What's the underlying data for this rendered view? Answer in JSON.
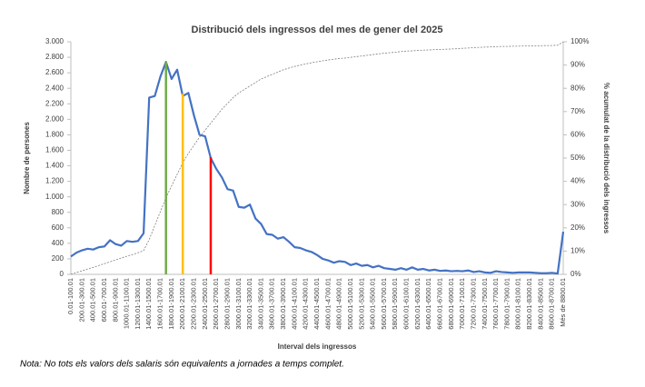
{
  "chart_data": {
    "type": "line",
    "title": "Distribució dels ingressos del mes de gener del 2025",
    "xlabel": "Interval dels ingressos",
    "ylabel": "Nombre de persones",
    "y2label": "% acumulat de la distribució dels ingressos",
    "note": "Nota: No tots els valors dels salaris són equivalents a jornades a temps complet.",
    "categories": [
      "0.01-100.01",
      null,
      "200.01-300.01",
      null,
      "400.01-500.01",
      null,
      "600.01-700.01",
      null,
      "800.01-900.01",
      null,
      "1000.01-1100.01",
      null,
      "1200.01-1300.01",
      null,
      "1400.01-1500.01",
      null,
      "1600.01-1700.01",
      null,
      "1800.01-1900.01",
      null,
      "2000.01-2100.01",
      null,
      "2200.01-2300.01",
      null,
      "2400.01-2500.01",
      null,
      "2600.01-2700.01",
      null,
      "2800.01-2900.01",
      null,
      "3000.01-3100.01",
      null,
      "3200.01-3300.01",
      null,
      "3400.01-3500.01",
      null,
      "3600.01-3700.01",
      null,
      "3800.01-3900.01",
      null,
      "4000.01-4100.01",
      null,
      "4200.01-4300.01",
      null,
      "4400.01-4500.01",
      null,
      "4600.01-4700.01",
      null,
      "4800.01-4900.01",
      null,
      "5000.01-5100.01",
      null,
      "5200.01-5300.01",
      null,
      "5400.01-5500.01",
      null,
      "5600.01-5700.01",
      null,
      "5800.01-5900.01",
      null,
      "6000.01-6100.01",
      null,
      "6200.01-6300.01",
      null,
      "6400.01-6500.01",
      null,
      "6600.01-6700.01",
      null,
      "6800.01-6900.01",
      null,
      "7000.01-7100.01",
      null,
      "7200.01-7300.01",
      null,
      "7400.01-7500.01",
      null,
      "7600.01-7700.01",
      null,
      "7800.01-7900.01",
      null,
      "8000.01-8100.01",
      null,
      "8200.01-8300.01",
      null,
      "8400.01-8500.01",
      null,
      "8600.01-8700.01",
      null,
      "Més de 8800.01"
    ],
    "series": [
      {
        "color": "#4472c4",
        "values": [
          230,
          280,
          310,
          330,
          320,
          350,
          360,
          440,
          390,
          370,
          430,
          420,
          430,
          530,
          2280,
          2300,
          2550,
          2740,
          2520,
          2640,
          2300,
          2340,
          2050,
          1800,
          1780,
          1500,
          1360,
          1250,
          1100,
          1080,
          870,
          860,
          900,
          720,
          650,
          520,
          510,
          460,
          480,
          420,
          350,
          340,
          310,
          290,
          250,
          200,
          180,
          150,
          170,
          160,
          120,
          140,
          110,
          120,
          90,
          110,
          80,
          70,
          60,
          80,
          60,
          90,
          60,
          70,
          50,
          60,
          45,
          50,
          40,
          45,
          40,
          50,
          30,
          40,
          25,
          20,
          40,
          30,
          25,
          20,
          25,
          25,
          25,
          20,
          15,
          15,
          20,
          10,
          550
        ]
      },
      {
        "color": "#7f7f7f",
        "axis": "y2",
        "dashed": true,
        "values": [
          0,
          0.8,
          1.5,
          2.3,
          3,
          3.8,
          4.6,
          5.4,
          6.2,
          7,
          7.8,
          8.5,
          9.3,
          10.2,
          15,
          21,
          27,
          33,
          38,
          43,
          48,
          52,
          55.5,
          59,
          62,
          65,
          68,
          71,
          73.5,
          76,
          78,
          79.5,
          81,
          82.5,
          84,
          85,
          86,
          87,
          88,
          88.7,
          89.4,
          90,
          90.5,
          91,
          91.4,
          91.8,
          92.2,
          92.5,
          92.8,
          93,
          93.3,
          93.6,
          93.9,
          94.2,
          94.5,
          94.8,
          95.1,
          95.3,
          95.5,
          95.8,
          96,
          96.1,
          96.3,
          96.4,
          96.5,
          96.6,
          96.7,
          96.8,
          96.9,
          97,
          97.2,
          97.3,
          97.5,
          97.6,
          97.7,
          97.8,
          97.9,
          98,
          98,
          98.1,
          98.1,
          98.2,
          98.2,
          98.3,
          98.3,
          98.4,
          98.4,
          98.5,
          100
        ]
      }
    ],
    "vertical_lines": [
      {
        "index": 17,
        "value": 2740,
        "color": "#70ad47"
      },
      {
        "index": 20,
        "value": 2330,
        "color": "#ffc000"
      },
      {
        "index": 25,
        "value": 1510,
        "color": "#ff0000"
      }
    ],
    "ylim": [
      0,
      3000
    ],
    "yticks": [
      0,
      200,
      400,
      600,
      800,
      {
        "value": 1000,
        "label": "1.000"
      },
      {
        "value": 1200,
        "label": "1.200"
      },
      {
        "value": 1400,
        "label": "1.400"
      },
      {
        "value": 1600,
        "label": "1.600"
      },
      {
        "value": 1800,
        "label": "1.800"
      },
      {
        "value": 2000,
        "label": "2.000"
      },
      {
        "value": 2200,
        "label": "2.200"
      },
      {
        "value": 2400,
        "label": "2.400"
      },
      {
        "value": 2600,
        "label": "2.600"
      },
      {
        "value": 2800,
        "label": "2.800"
      },
      {
        "value": 3000,
        "label": "3.000"
      }
    ],
    "y2lim": [
      0,
      100
    ],
    "y2ticks": [
      {
        "value": 0,
        "label": "0%"
      },
      {
        "value": 10,
        "label": "10%"
      },
      {
        "value": 20,
        "label": "20%"
      },
      {
        "value": 30,
        "label": "30%"
      },
      {
        "value": 40,
        "label": "40%"
      },
      {
        "value": 50,
        "label": "50%"
      },
      {
        "value": 60,
        "label": "60%"
      },
      {
        "value": 70,
        "label": "70%"
      },
      {
        "value": 80,
        "label": "80%"
      },
      {
        "value": 90,
        "label": "90%"
      },
      {
        "value": 100,
        "label": "100%"
      }
    ],
    "grid": false
  }
}
